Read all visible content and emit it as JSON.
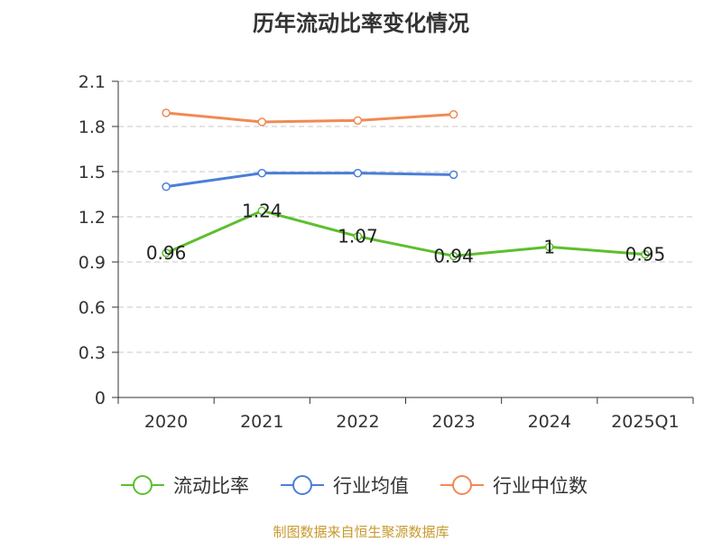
{
  "chart_data": {
    "type": "line",
    "title": "历年流动比率变化情况",
    "categories": [
      "2020",
      "2021",
      "2022",
      "2023",
      "2024",
      "2025Q1"
    ],
    "y_ticks": [
      "0",
      "0.3",
      "0.6",
      "0.9",
      "1.2",
      "1.5",
      "1.8",
      "2.1"
    ],
    "ylim": [
      0,
      2.1
    ],
    "grid": true,
    "legend_position": "bottom",
    "series": [
      {
        "name": "流动比率",
        "color": "#5dbf2e",
        "values": [
          0.96,
          1.24,
          1.07,
          0.94,
          1,
          0.95
        ],
        "labels": [
          "0.96",
          "1.24",
          "1.07",
          "0.94",
          "1",
          "0.95"
        ]
      },
      {
        "name": "行业均值",
        "color": "#4a7fd8",
        "values": [
          1.4,
          1.49,
          1.49,
          1.48,
          null,
          null
        ]
      },
      {
        "name": "行业中位数",
        "color": "#f08a55",
        "values": [
          1.89,
          1.83,
          1.84,
          1.88,
          null,
          null
        ]
      }
    ]
  },
  "source": "制图数据来自恒生聚源数据库"
}
